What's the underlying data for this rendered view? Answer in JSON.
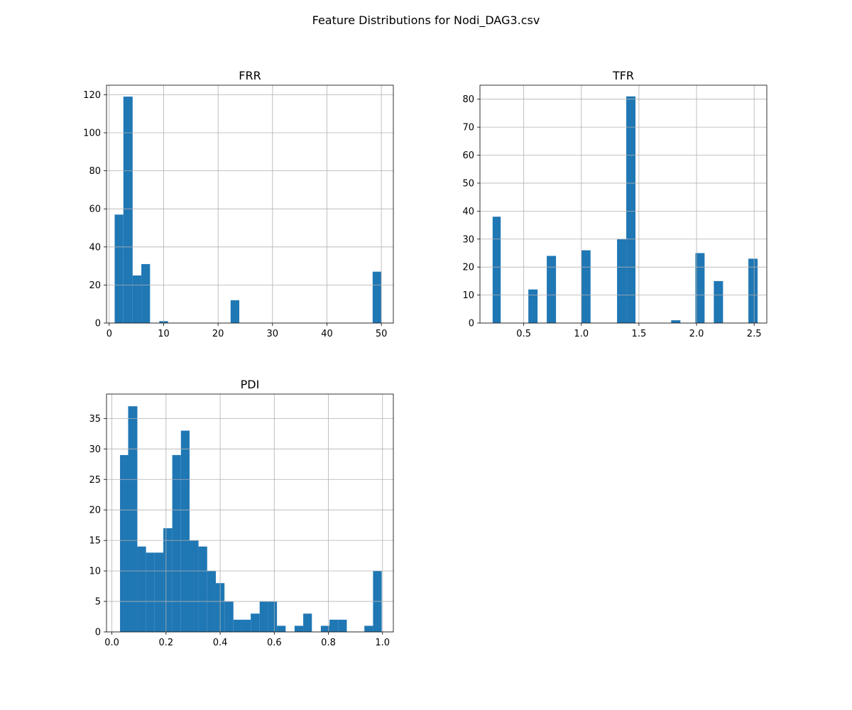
{
  "figure": {
    "title": "Feature Distributions for Nodi_DAG3.csv",
    "bar_color": "#1f77b4",
    "grid_color": "#b0b0b0"
  },
  "chart_data": [
    {
      "type": "bar",
      "title": "FRR",
      "xlabel": "",
      "ylabel": "",
      "grid": true,
      "xlim": [
        -0.5,
        52.2
      ],
      "ylim": [
        0,
        125
      ],
      "xticks": [
        0,
        10,
        20,
        30,
        40,
        50
      ],
      "yticks": [
        0,
        20,
        40,
        60,
        80,
        100,
        120
      ],
      "bins": [
        {
          "x0": 1.0,
          "x1": 2.6,
          "count": 57
        },
        {
          "x0": 2.6,
          "x1": 4.3,
          "count": 119
        },
        {
          "x0": 4.3,
          "x1": 5.9,
          "count": 25
        },
        {
          "x0": 5.9,
          "x1": 7.5,
          "count": 31
        },
        {
          "x0": 9.2,
          "x1": 10.8,
          "count": 1
        },
        {
          "x0": 22.3,
          "x1": 23.9,
          "count": 12
        },
        {
          "x0": 48.4,
          "x1": 50.0,
          "count": 27
        }
      ]
    },
    {
      "type": "bar",
      "title": "TFR",
      "xlabel": "",
      "ylabel": "",
      "grid": true,
      "xlim": [
        0.12,
        2.61
      ],
      "ylim": [
        0,
        85
      ],
      "xticks": [
        0.5,
        1.0,
        1.5,
        2.0,
        2.5
      ],
      "xtick_labels": [
        "0.5",
        "1.0",
        "1.5",
        "2.0",
        "2.5"
      ],
      "yticks": [
        0,
        10,
        20,
        30,
        40,
        50,
        60,
        70,
        80
      ],
      "bins": [
        {
          "x0": 0.23,
          "x1": 0.3,
          "count": 38
        },
        {
          "x0": 0.54,
          "x1": 0.62,
          "count": 12
        },
        {
          "x0": 0.7,
          "x1": 0.78,
          "count": 24
        },
        {
          "x0": 1.0,
          "x1": 1.08,
          "count": 26
        },
        {
          "x0": 1.31,
          "x1": 1.39,
          "count": 30
        },
        {
          "x0": 1.39,
          "x1": 1.47,
          "count": 81
        },
        {
          "x0": 1.78,
          "x1": 1.86,
          "count": 1
        },
        {
          "x0": 1.99,
          "x1": 2.07,
          "count": 25
        },
        {
          "x0": 2.15,
          "x1": 2.23,
          "count": 15
        },
        {
          "x0": 2.45,
          "x1": 2.53,
          "count": 23
        }
      ]
    },
    {
      "type": "bar",
      "title": "PDI",
      "xlabel": "",
      "ylabel": "",
      "grid": true,
      "xlim": [
        -0.02,
        1.04
      ],
      "ylim": [
        0,
        39
      ],
      "xticks": [
        0.0,
        0.2,
        0.4,
        0.6,
        0.8,
        1.0
      ],
      "xtick_labels": [
        "0.0",
        "0.2",
        "0.4",
        "0.6",
        "0.8",
        "1.0"
      ],
      "yticks": [
        0,
        5,
        10,
        15,
        20,
        25,
        30,
        35
      ],
      "bins": [
        {
          "x0": 0.03,
          "x1": 0.06,
          "count": 29
        },
        {
          "x0": 0.06,
          "x1": 0.094,
          "count": 37
        },
        {
          "x0": 0.094,
          "x1": 0.126,
          "count": 14
        },
        {
          "x0": 0.126,
          "x1": 0.158,
          "count": 13
        },
        {
          "x0": 0.158,
          "x1": 0.19,
          "count": 13
        },
        {
          "x0": 0.19,
          "x1": 0.223,
          "count": 17
        },
        {
          "x0": 0.223,
          "x1": 0.255,
          "count": 29
        },
        {
          "x0": 0.255,
          "x1": 0.287,
          "count": 33
        },
        {
          "x0": 0.287,
          "x1": 0.32,
          "count": 15
        },
        {
          "x0": 0.32,
          "x1": 0.352,
          "count": 14
        },
        {
          "x0": 0.352,
          "x1": 0.384,
          "count": 10
        },
        {
          "x0": 0.384,
          "x1": 0.416,
          "count": 8
        },
        {
          "x0": 0.416,
          "x1": 0.449,
          "count": 5
        },
        {
          "x0": 0.449,
          "x1": 0.481,
          "count": 2
        },
        {
          "x0": 0.481,
          "x1": 0.513,
          "count": 2
        },
        {
          "x0": 0.513,
          "x1": 0.546,
          "count": 3
        },
        {
          "x0": 0.546,
          "x1": 0.578,
          "count": 5
        },
        {
          "x0": 0.578,
          "x1": 0.61,
          "count": 5
        },
        {
          "x0": 0.61,
          "x1": 0.642,
          "count": 1
        },
        {
          "x0": 0.675,
          "x1": 0.707,
          "count": 1
        },
        {
          "x0": 0.707,
          "x1": 0.739,
          "count": 3
        },
        {
          "x0": 0.772,
          "x1": 0.804,
          "count": 1
        },
        {
          "x0": 0.804,
          "x1": 0.836,
          "count": 2
        },
        {
          "x0": 0.836,
          "x1": 0.868,
          "count": 2
        },
        {
          "x0": 0.933,
          "x1": 0.965,
          "count": 1
        },
        {
          "x0": 0.965,
          "x1": 0.997,
          "count": 10
        }
      ]
    }
  ]
}
